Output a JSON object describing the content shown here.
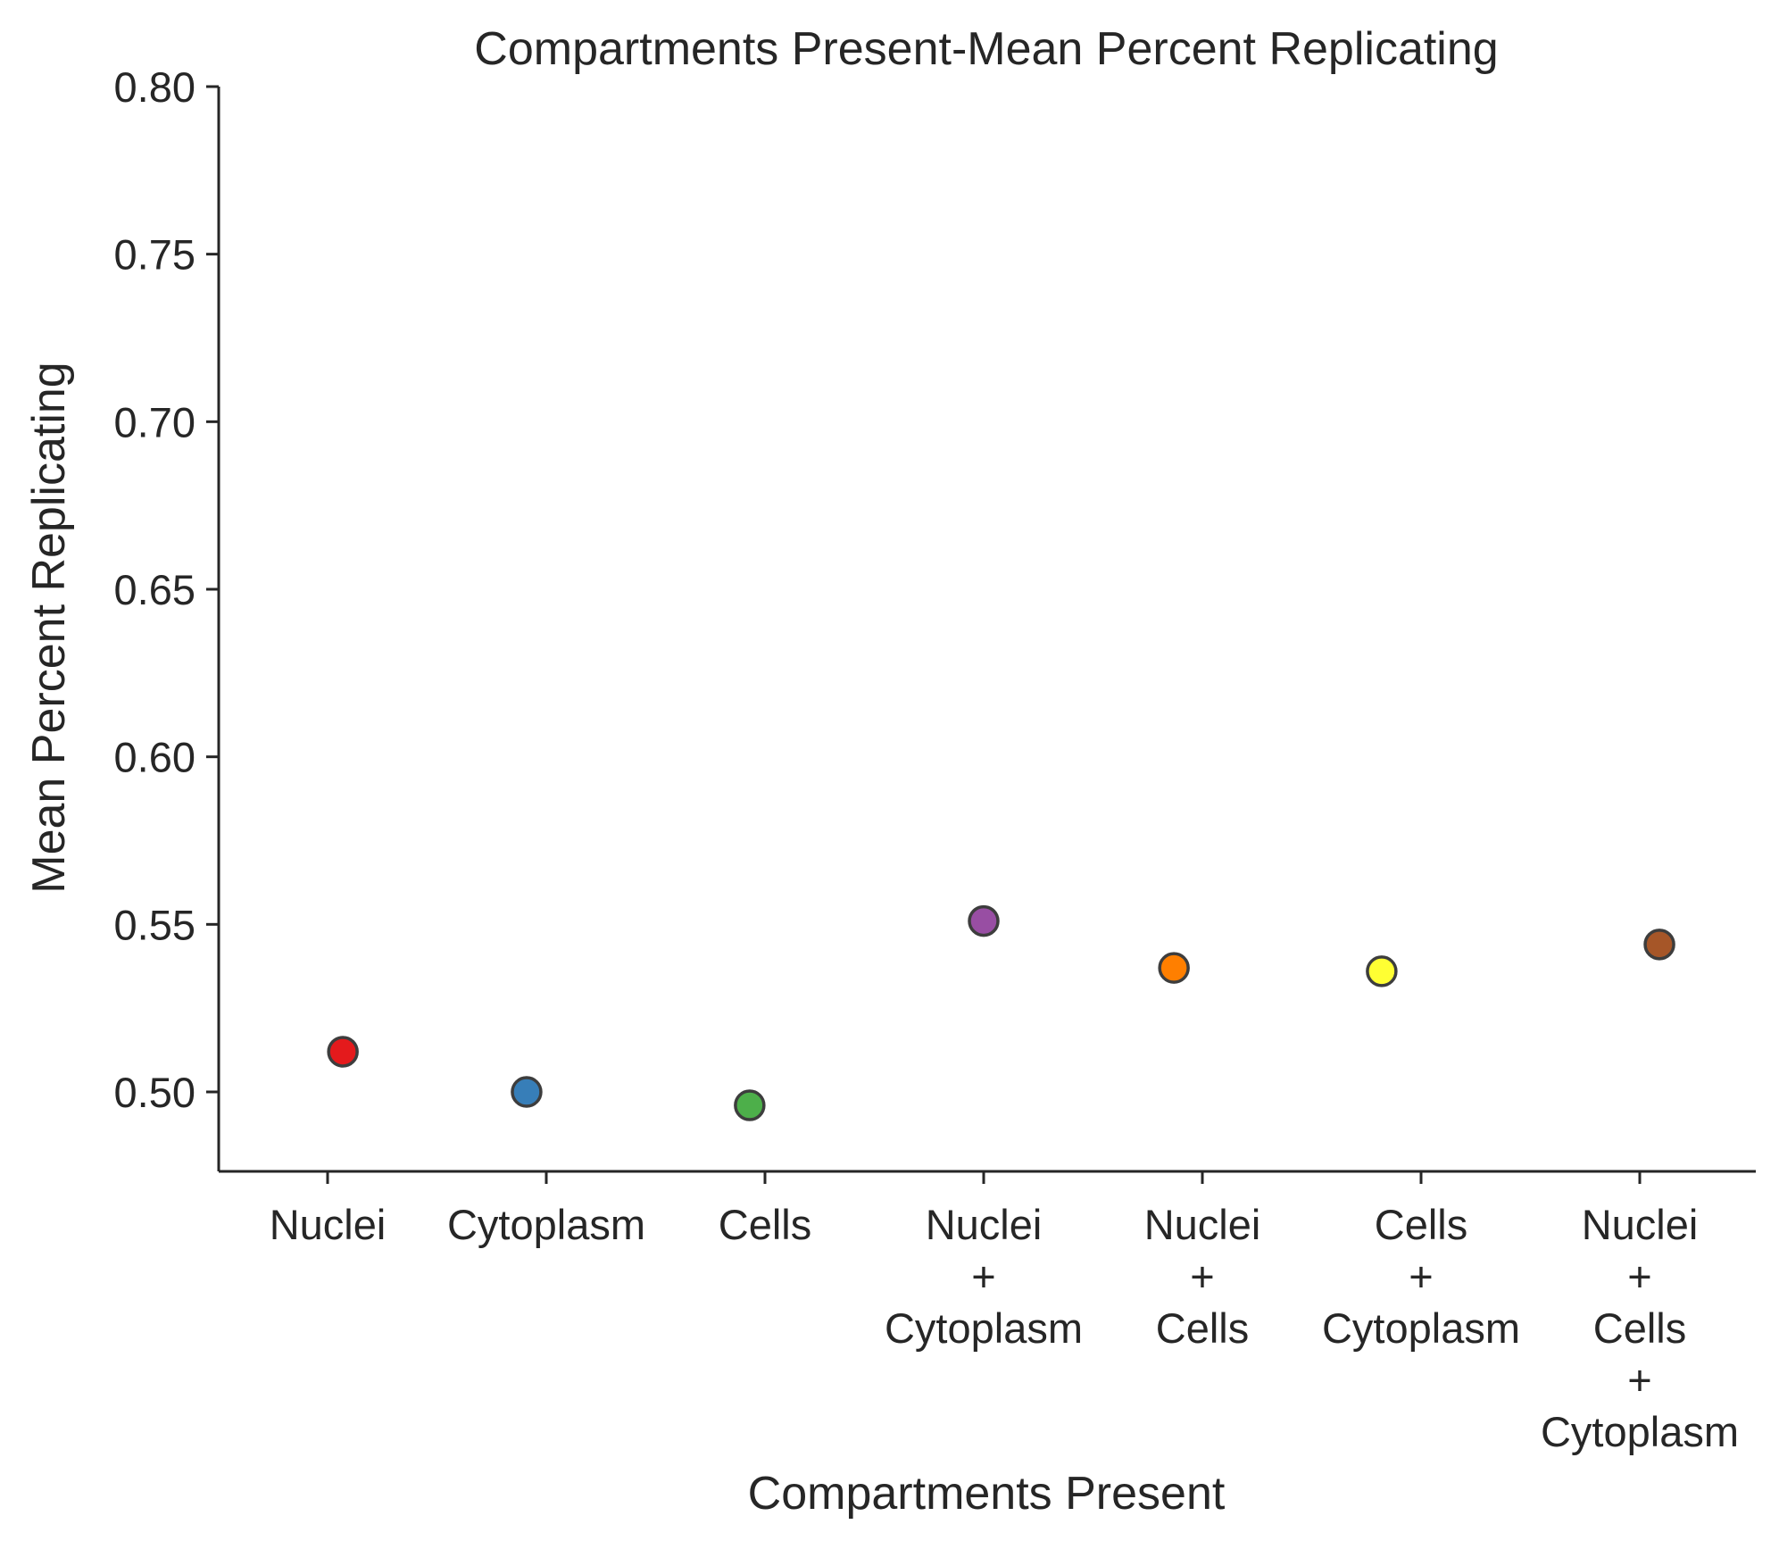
{
  "chart_data": {
    "type": "scatter",
    "title": "Compartments Present-Mean Percent Replicating",
    "xlabel": "Compartments Present",
    "ylabel": "Mean Percent Replicating",
    "ylim": [
      0.475,
      0.8
    ],
    "yticks": [
      0.5,
      0.55,
      0.6,
      0.65,
      0.7,
      0.75,
      0.8
    ],
    "ytick_labels": [
      "0.50",
      "0.55",
      "0.60",
      "0.65",
      "0.70",
      "0.75",
      "0.80"
    ],
    "categories": [
      [
        "Nuclei"
      ],
      [
        "Cytoplasm"
      ],
      [
        "Cells"
      ],
      [
        "Nuclei",
        "+",
        "Cytoplasm"
      ],
      [
        "Nuclei",
        "+",
        "Cells"
      ],
      [
        "Cells",
        "+",
        "Cytoplasm"
      ],
      [
        "Nuclei",
        "+",
        "Cells",
        "+",
        "Cytoplasm"
      ]
    ],
    "points": [
      {
        "category_index": 0,
        "x_offset": 0.07,
        "value": 0.512,
        "color": "#e41a1c"
      },
      {
        "category_index": 1,
        "x_offset": -0.09,
        "value": 0.5,
        "color": "#377eb8"
      },
      {
        "category_index": 2,
        "x_offset": -0.07,
        "value": 0.496,
        "color": "#4daf4a"
      },
      {
        "category_index": 3,
        "x_offset": 0.0,
        "value": 0.551,
        "color": "#984ea3"
      },
      {
        "category_index": 4,
        "x_offset": -0.13,
        "value": 0.537,
        "color": "#ff7f00"
      },
      {
        "category_index": 5,
        "x_offset": -0.18,
        "value": 0.536,
        "color": "#ffff33"
      },
      {
        "category_index": 6,
        "x_offset": 0.09,
        "value": 0.544,
        "color": "#a65628"
      }
    ],
    "grid": false,
    "legend": "none"
  }
}
